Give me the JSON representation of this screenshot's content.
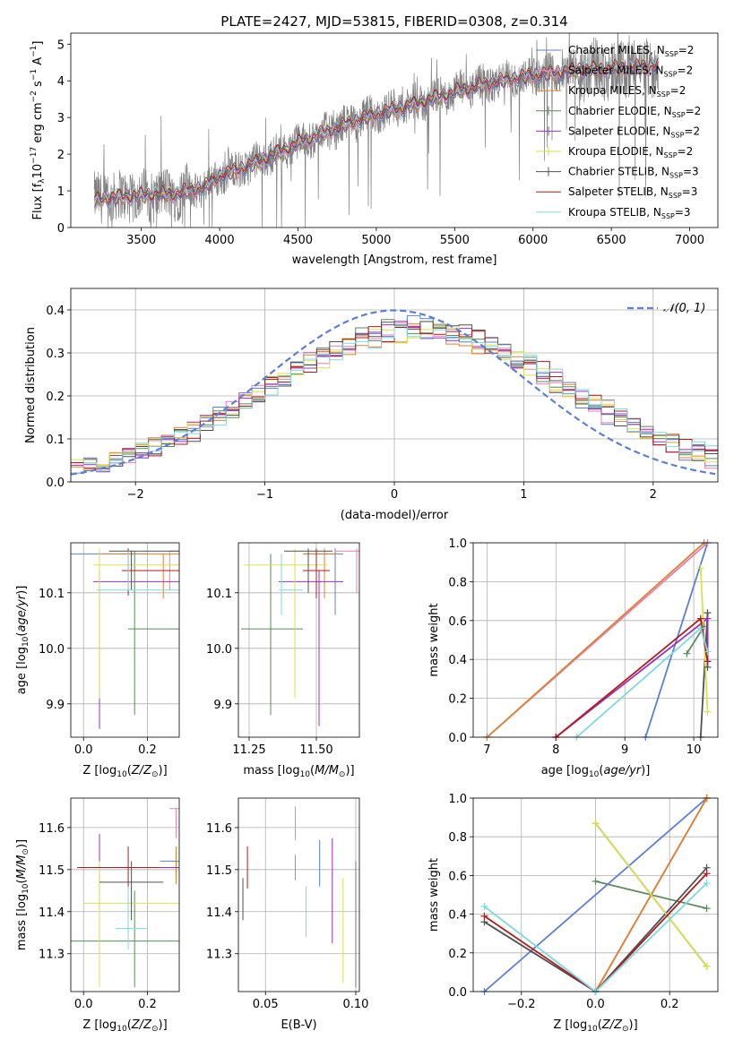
{
  "figure": {
    "title": "PLATE=2427, MJD=53815, FIBERID=0308, z=0.314"
  },
  "series_legend": [
    {
      "label": "Chabrier MILES, N_SSP=2",
      "base": "Chabrier MILES, N",
      "sub": "SSP",
      "tail": "=2",
      "color": "#5b7fd6"
    },
    {
      "label": "Salpeter MILES, N_SSP=2",
      "base": "Salpeter MILES, N",
      "sub": "SSP",
      "tail": "=2",
      "color": "#e77fb4"
    },
    {
      "label": "Kroupa MILES, N_SSP=2",
      "base": "Kroupa MILES, N",
      "sub": "SSP",
      "tail": "=2",
      "color": "#e0812e"
    },
    {
      "label": "Chabrier ELODIE, N_SSP=2",
      "base": "Chabrier ELODIE, N",
      "sub": "SSP",
      "tail": "=2",
      "color": "#5a8a5a"
    },
    {
      "label": "Salpeter ELODIE, N_SSP=2",
      "base": "Salpeter ELODIE, N",
      "sub": "SSP",
      "tail": "=2",
      "color": "#9b30c0"
    },
    {
      "label": "Kroupa ELODIE, N_SSP=2",
      "base": "Kroupa ELODIE, N",
      "sub": "SSP",
      "tail": "=2",
      "color": "#d9e24a"
    },
    {
      "label": "Chabrier STELIB, N_SSP=3",
      "base": "Chabrier STELIB, N",
      "sub": "SSP",
      "tail": "=3",
      "color": "#505050"
    },
    {
      "label": "Salpeter STELIB, N_SSP=3",
      "base": "Salpeter STELIB, N",
      "sub": "SSP",
      "tail": "=3",
      "color": "#b01c1c"
    },
    {
      "label": "Kroupa STELIB, N_SSP=3",
      "base": "Kroupa STELIB, N",
      "sub": "SSP",
      "tail": "=3",
      "color": "#7ed8e0"
    }
  ],
  "chart_data": [
    {
      "id": "spectrum",
      "type": "line",
      "xlabel": "wavelength [Angstrom, rest frame]",
      "ylabel": "Flux [f_λ 10^-17 erg cm^-2 s^-1 A^-1]",
      "xlim": [
        3050,
        7180
      ],
      "ylim": [
        0,
        5.3
      ],
      "xticks": [
        3500,
        4000,
        4500,
        5000,
        5500,
        6000,
        6500,
        7000
      ],
      "yticks": [
        0,
        1,
        2,
        3,
        4,
        5
      ],
      "legend_position": "top-right",
      "grid": false,
      "data_color": "#808080",
      "x_range": [
        3200,
        6800
      ],
      "continuum_anchors": [
        [
          3200,
          0.75
        ],
        [
          3400,
          0.85
        ],
        [
          3600,
          0.9
        ],
        [
          3700,
          0.9
        ],
        [
          3800,
          1.0
        ],
        [
          3900,
          1.1
        ],
        [
          4000,
          1.4
        ],
        [
          4200,
          1.7
        ],
        [
          4500,
          2.3
        ],
        [
          4800,
          2.8
        ],
        [
          5000,
          3.1
        ],
        [
          5200,
          3.3
        ],
        [
          5500,
          3.7
        ],
        [
          5800,
          4.0
        ],
        [
          6000,
          4.15
        ],
        [
          6300,
          4.3
        ],
        [
          6600,
          4.35
        ],
        [
          6800,
          4.4
        ]
      ]
    },
    {
      "id": "residual_hist",
      "type": "bar",
      "xlabel": "(data-model)/error",
      "ylabel": "Normed distribution",
      "xlim": [
        -2.5,
        2.5
      ],
      "ylim": [
        0,
        0.45
      ],
      "xticks": [
        -2,
        -1,
        0,
        1,
        2
      ],
      "yticks": [
        0.0,
        0.1,
        0.2,
        0.3,
        0.4
      ],
      "grid": true,
      "legend_position": "top-right",
      "reference_curve": {
        "name": "𝒩(0, 1)",
        "color": "#5b7fd6",
        "style": "dashed",
        "mean": 0,
        "sigma": 1
      },
      "bin_width": 0.1,
      "n_bins": 50
    },
    {
      "id": "age_vs_Z",
      "type": "scatter",
      "xlabel": "Z [log10(Z/Z⊙)]",
      "ylabel": "age [log10(age/yr)]",
      "xlim": [
        -0.04,
        0.3
      ],
      "ylim": [
        9.84,
        10.19
      ],
      "xticks": [
        0.0,
        0.2
      ],
      "yticks": [
        9.9,
        10.0,
        10.1
      ],
      "grid": true,
      "points": [
        {
          "series": 0,
          "x": 0.2,
          "y": 10.17,
          "xerr": [
            0.3,
            0.0
          ],
          "yerr": [
            0.0,
            0.0
          ]
        },
        {
          "series": 1,
          "x": 0.27,
          "y": 10.175,
          "xerr": [
            0.0,
            0.3
          ],
          "yerr": [
            0.07,
            0.0
          ]
        },
        {
          "series": 2,
          "x": 0.25,
          "y": 10.17,
          "xerr": [
            0.2,
            0.3
          ],
          "yerr": [
            0.08,
            0.0
          ]
        },
        {
          "series": 3,
          "x": 0.16,
          "y": 10.035,
          "xerr": [
            0.02,
            0.3
          ],
          "yerr": [
            0.155,
            0.14
          ]
        },
        {
          "series": 4,
          "x": 0.05,
          "y": 10.12,
          "xerr": [
            0.02,
            0.3
          ],
          "yerr": [
            0.265,
            0.02
          ]
        },
        {
          "series": 5,
          "x": 0.05,
          "y": 10.15,
          "xerr": [
            0.02,
            0.3
          ],
          "yerr": [
            0.24,
            0.03
          ]
        },
        {
          "series": 6,
          "x": 0.15,
          "y": 10.175,
          "xerr": [
            0.07,
            0.3
          ],
          "yerr": [
            0.07,
            0.0
          ]
        },
        {
          "series": 7,
          "x": 0.14,
          "y": 10.14,
          "xerr": [
            0.02,
            0.26
          ],
          "yerr": [
            0.045,
            0.04
          ]
        },
        {
          "series": 8,
          "x": 0.14,
          "y": 10.105,
          "xerr": [
            0.1,
            0.2
          ],
          "yerr": [
            0.0,
            0.07
          ]
        }
      ]
    },
    {
      "id": "age_vs_mass",
      "type": "scatter",
      "xlabel": "mass [log10(M/M⊙)]",
      "ylabel": "",
      "xlim": [
        11.21,
        11.66
      ],
      "ylim": [
        9.84,
        10.19
      ],
      "xticks": [
        11.25,
        11.5
      ],
      "yticks": [
        9.9,
        10.0,
        10.1
      ],
      "grid": true,
      "points": [
        {
          "series": 0,
          "x": 11.57,
          "y": 10.17,
          "xerr": [
            11.45,
            11.6
          ],
          "yerr": [
            10.06,
            10.18
          ]
        },
        {
          "series": 1,
          "x": 11.65,
          "y": 10.175,
          "xerr": [
            11.57,
            11.66
          ],
          "yerr": [
            10.1,
            10.18
          ]
        },
        {
          "series": 2,
          "x": 11.53,
          "y": 10.17,
          "xerr": [
            11.45,
            11.58
          ],
          "yerr": [
            10.09,
            10.18
          ]
        },
        {
          "series": 3,
          "x": 11.33,
          "y": 10.035,
          "xerr": [
            11.22,
            11.45
          ],
          "yerr": [
            9.88,
            10.17
          ]
        },
        {
          "series": 4,
          "x": 11.51,
          "y": 10.12,
          "xerr": [
            11.36,
            11.6
          ],
          "yerr": [
            9.86,
            10.14
          ]
        },
        {
          "series": 5,
          "x": 11.42,
          "y": 10.15,
          "xerr": [
            11.23,
            11.54
          ],
          "yerr": [
            9.91,
            10.18
          ]
        },
        {
          "series": 6,
          "x": 11.47,
          "y": 10.175,
          "xerr": [
            11.38,
            11.56
          ],
          "yerr": [
            10.1,
            10.18
          ]
        },
        {
          "series": 7,
          "x": 11.5,
          "y": 10.14,
          "xerr": [
            11.45,
            11.55
          ],
          "yerr": [
            10.09,
            10.18
          ]
        },
        {
          "series": 8,
          "x": 11.37,
          "y": 10.105,
          "xerr": [
            11.36,
            11.45
          ],
          "yerr": [
            10.06,
            10.17
          ]
        }
      ]
    },
    {
      "id": "weight_vs_age",
      "type": "line",
      "xlabel": "age [log10(age/yr)]",
      "ylabel": "mass weight",
      "xlim": [
        6.8,
        10.35
      ],
      "ylim": [
        0.0,
        1.0
      ],
      "xticks": [
        7,
        8,
        9,
        10
      ],
      "yticks": [
        0.0,
        0.2,
        0.4,
        0.6,
        0.8,
        1.0
      ],
      "grid": true,
      "series_points": [
        {
          "series": 0,
          "pts": [
            [
              9.3,
              0.0
            ],
            [
              10.2,
              1.0
            ]
          ]
        },
        {
          "series": 1,
          "pts": [
            [
              7.0,
              0.0
            ],
            [
              10.2,
              1.0
            ]
          ]
        },
        {
          "series": 2,
          "pts": [
            [
              7.0,
              0.0
            ],
            [
              10.15,
              1.0
            ]
          ]
        },
        {
          "series": 3,
          "pts": [
            [
              9.9,
              0.43
            ],
            [
              10.15,
              0.57
            ]
          ]
        },
        {
          "series": 4,
          "pts": [
            [
              8.0,
              0.0
            ],
            [
              10.2,
              0.61
            ],
            [
              10.2,
              0.39
            ]
          ]
        },
        {
          "series": 5,
          "pts": [
            [
              10.1,
              0.87
            ],
            [
              10.2,
              0.13
            ]
          ]
        },
        {
          "series": 6,
          "pts": [
            [
              10.1,
              0.0
            ],
            [
              10.2,
              0.64
            ],
            [
              10.2,
              0.36
            ]
          ]
        },
        {
          "series": 7,
          "pts": [
            [
              8.0,
              0.0
            ],
            [
              10.1,
              0.61
            ],
            [
              10.2,
              0.39
            ]
          ]
        },
        {
          "series": 8,
          "pts": [
            [
              8.3,
              0.0
            ],
            [
              10.1,
              0.56
            ],
            [
              10.2,
              0.44
            ]
          ]
        }
      ]
    },
    {
      "id": "mass_vs_Z",
      "type": "scatter",
      "xlabel": "Z [log10(Z/Z⊙)]",
      "ylabel": "mass [log10(M/M⊙)]",
      "xlim": [
        -0.04,
        0.3
      ],
      "ylim": [
        11.21,
        11.67
      ],
      "xticks": [
        0.0,
        0.2
      ],
      "yticks": [
        11.3,
        11.4,
        11.5,
        11.6
      ],
      "grid": true,
      "points": [
        {
          "series": 0,
          "x": 0.29,
          "y": 11.52,
          "xerr": [
            0.05,
            0.01
          ],
          "yerr": [
            0.04,
            0.02
          ]
        },
        {
          "series": 1,
          "x": 0.29,
          "y": 11.645,
          "xerr": [
            0.02,
            0.01
          ],
          "yerr": [
            0.07,
            0.0
          ]
        },
        {
          "series": 2,
          "x": 0.29,
          "y": 11.505,
          "xerr": [
            0.0,
            0.01
          ],
          "yerr": [
            0.04,
            0.05
          ]
        },
        {
          "series": 3,
          "x": 0.16,
          "y": 11.33,
          "xerr": [
            0.3,
            0.14
          ],
          "yerr": [
            0.11,
            0.12
          ]
        },
        {
          "series": 4,
          "x": 0.05,
          "y": 11.505,
          "xerr": [
            0.05,
            0.25
          ],
          "yerr": [
            0.1,
            0.08
          ]
        },
        {
          "series": 5,
          "x": 0.05,
          "y": 11.42,
          "xerr": [
            0.05,
            0.25
          ],
          "yerr": [
            0.2,
            0.1
          ]
        },
        {
          "series": 6,
          "x": 0.15,
          "y": 11.47,
          "xerr": [
            0.1,
            0.1
          ],
          "yerr": [
            0.09,
            0.05
          ]
        },
        {
          "series": 7,
          "x": 0.14,
          "y": 11.505,
          "xerr": [
            0.16,
            0.1
          ],
          "yerr": [
            0.05,
            0.05
          ]
        },
        {
          "series": 8,
          "x": 0.14,
          "y": 11.36,
          "xerr": [
            0.04,
            0.06
          ],
          "yerr": [
            0.05,
            0.1
          ]
        }
      ]
    },
    {
      "id": "mass_vs_ebv",
      "type": "scatter",
      "xlabel": "E(B-V)",
      "ylabel": "",
      "xlim": [
        0.035,
        0.102
      ],
      "ylim": [
        11.21,
        11.67
      ],
      "xticks": [
        0.05,
        0.1
      ],
      "yticks": [
        11.3,
        11.4,
        11.5,
        11.6
      ],
      "grid": true,
      "points": [
        {
          "series": 0,
          "x": 0.08,
          "y": 11.52,
          "yerr": [
            0.06,
            0.05
          ]
        },
        {
          "series": 1,
          "x": 0.0665,
          "y": 11.65,
          "yerr": [
            0.08,
            0.0
          ]
        },
        {
          "series": 2,
          "x": 0.0665,
          "y": 11.505,
          "yerr": [
            0.03,
            0.03
          ]
        },
        {
          "series": 3,
          "x": 0.1,
          "y": 11.33,
          "yerr": [
            0.11,
            0.19
          ]
        },
        {
          "series": 4,
          "x": 0.087,
          "y": 11.505,
          "yerr": [
            0.18,
            0.07
          ]
        },
        {
          "series": 5,
          "x": 0.093,
          "y": 11.42,
          "yerr": [
            0.19,
            0.06
          ]
        },
        {
          "series": 6,
          "x": 0.0375,
          "y": 11.47,
          "yerr": [
            0.09,
            0.01
          ]
        },
        {
          "series": 7,
          "x": 0.04,
          "y": 11.505,
          "yerr": [
            0.05,
            0.05
          ]
        },
        {
          "series": 8,
          "x": 0.0725,
          "y": 11.36,
          "yerr": [
            0.02,
            0.1
          ]
        }
      ]
    },
    {
      "id": "weight_vs_Z",
      "type": "line",
      "xlabel": "Z [log10(Z/Z⊙)]",
      "ylabel": "mass weight",
      "xlim": [
        -0.33,
        0.33
      ],
      "ylim": [
        0.0,
        1.0
      ],
      "xticks": [
        -0.2,
        0.0,
        0.2
      ],
      "yticks": [
        0.0,
        0.2,
        0.4,
        0.6,
        0.8,
        1.0
      ],
      "grid": true,
      "series_points": [
        {
          "series": 0,
          "pts": [
            [
              -0.3,
              0.0
            ],
            [
              0.3,
              1.0
            ]
          ]
        },
        {
          "series": 1,
          "pts": [
            [
              0.0,
              0.0
            ],
            [
              0.3,
              1.0
            ]
          ]
        },
        {
          "series": 2,
          "pts": [
            [
              0.0,
              0.0
            ],
            [
              0.3,
              1.0
            ]
          ]
        },
        {
          "series": 3,
          "pts": [
            [
              0.0,
              0.57
            ],
            [
              0.3,
              0.43
            ]
          ]
        },
        {
          "series": 4,
          "pts": [
            [
              0.0,
              0.87
            ],
            [
              0.3,
              0.13
            ]
          ]
        },
        {
          "series": 5,
          "pts": [
            [
              0.0,
              0.87
            ],
            [
              0.3,
              0.13
            ]
          ]
        },
        {
          "series": 6,
          "pts": [
            [
              -0.3,
              0.36
            ],
            [
              0.0,
              0.0
            ],
            [
              0.3,
              0.64
            ]
          ]
        },
        {
          "series": 7,
          "pts": [
            [
              -0.3,
              0.39
            ],
            [
              0.0,
              0.0
            ],
            [
              0.3,
              0.61
            ]
          ]
        },
        {
          "series": 8,
          "pts": [
            [
              -0.3,
              0.44
            ],
            [
              0.0,
              0.0
            ],
            [
              0.3,
              0.56
            ]
          ]
        }
      ]
    }
  ]
}
